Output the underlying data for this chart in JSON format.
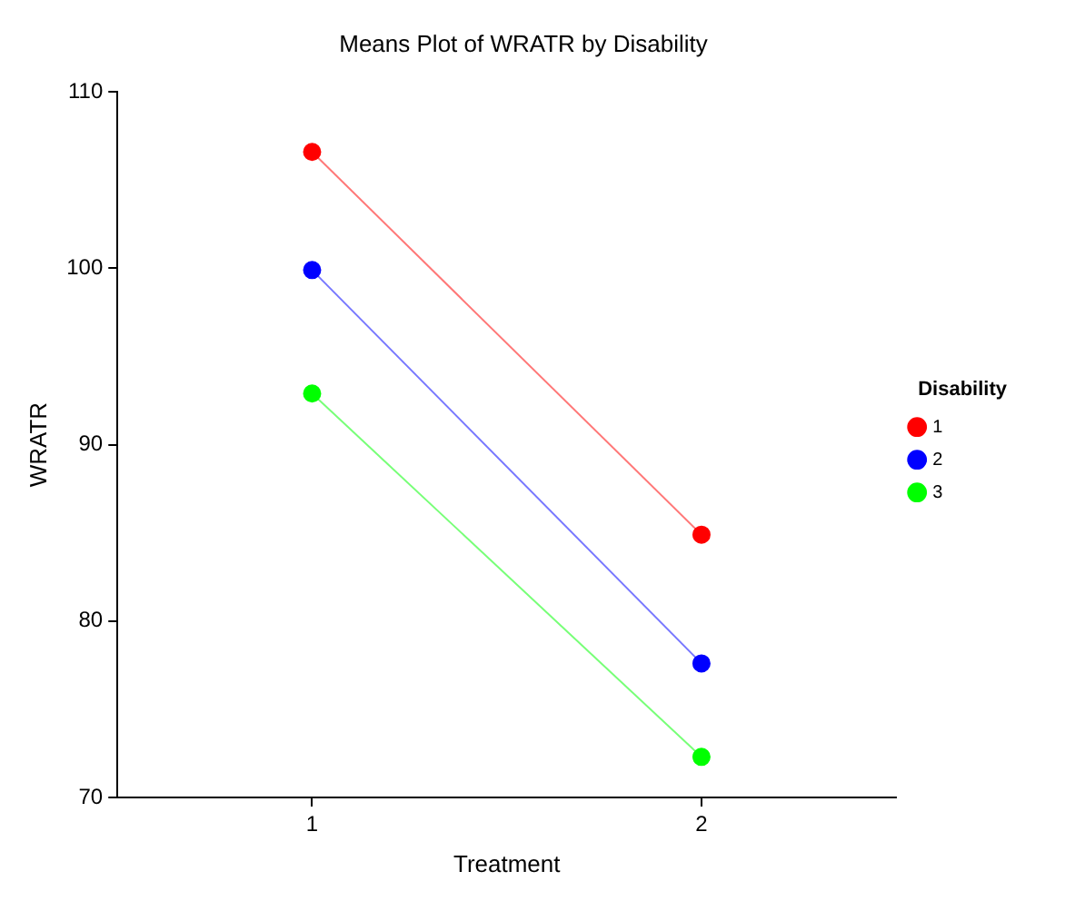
{
  "chart_data": {
    "type": "line",
    "title": "Means Plot of WRATR by Disability",
    "xlabel": "Treatment",
    "ylabel": "WRATR",
    "legend_title": "Disability",
    "categories": [
      "1",
      "2"
    ],
    "series": [
      {
        "name": "1",
        "color": "#ff0000",
        "values": [
          106.6,
          84.9
        ]
      },
      {
        "name": "2",
        "color": "#0000ff",
        "values": [
          99.9,
          77.6
        ]
      },
      {
        "name": "3",
        "color": "#00ff00",
        "values": [
          92.9,
          72.3
        ]
      }
    ],
    "ylim": [
      70,
      110
    ],
    "yticks": [
      70,
      80,
      90,
      100,
      110
    ],
    "grid": false,
    "legend": "right",
    "marker": "circle",
    "line_style": "solid"
  }
}
